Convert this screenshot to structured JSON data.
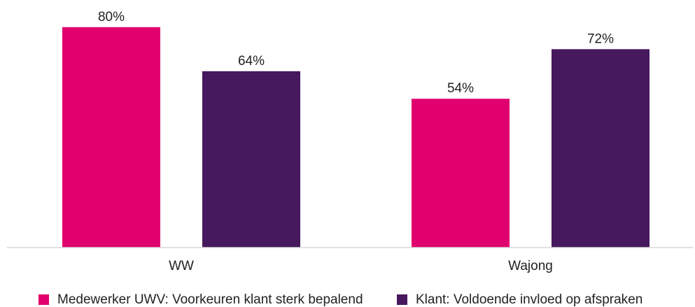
{
  "chart_data": {
    "type": "bar",
    "title": "",
    "xlabel": "",
    "ylabel": "",
    "ylim": [
      0,
      100
    ],
    "grid": false,
    "legend_position": "bottom",
    "categories": [
      "WW",
      "Wajong"
    ],
    "series": [
      {
        "name": "Medewerker UWV: Voorkeuren klant sterk bepalend",
        "values": [
          80,
          54
        ],
        "labels": [
          "80%",
          "54%"
        ],
        "color": "#e0006e"
      },
      {
        "name": "Klant: Voldoende invloed op afspraken",
        "values": [
          64,
          72
        ],
        "labels": [
          "64%",
          "72%"
        ],
        "color": "#46185d"
      }
    ]
  }
}
